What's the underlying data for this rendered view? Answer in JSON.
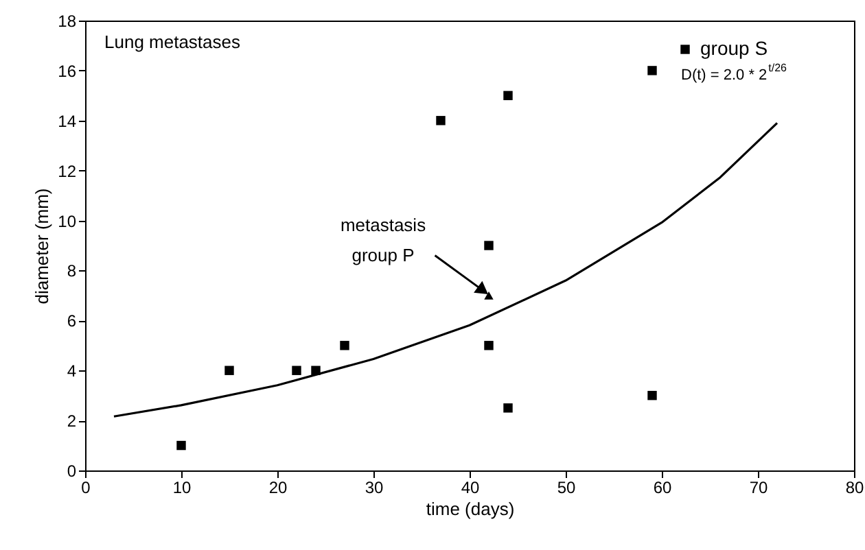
{
  "chart_data": {
    "type": "scatter",
    "title": "Lung metastases",
    "xlabel": "time (days)",
    "ylabel": "diameter (mm)",
    "xlim": [
      0,
      80
    ],
    "xticks": [
      0,
      10,
      20,
      30,
      40,
      50,
      60,
      70,
      80
    ],
    "ylim": [
      0,
      18
    ],
    "yticks": [
      0,
      2,
      4,
      6,
      8,
      10,
      12,
      14,
      16,
      18
    ],
    "grid": false,
    "legend": "top right",
    "series": [
      {
        "name": "group S",
        "color": "#000000",
        "marker": "square",
        "x": [
          10,
          15,
          22,
          24,
          27,
          37,
          42,
          42,
          44,
          44,
          59,
          59
        ],
        "values": [
          1,
          4,
          4,
          4,
          5,
          14,
          9,
          5,
          15,
          2.5,
          16,
          3
        ]
      },
      {
        "color": "#000000",
        "marker": "triangle",
        "x": [
          42
        ],
        "values": [
          7
        ]
      },
      {
        "type": "line",
        "color": "#000000",
        "marker": "none",
        "x": [
          3,
          10,
          20,
          30,
          40,
          50,
          60,
          66,
          72
        ],
        "values": [
          2.16,
          2.61,
          3.41,
          4.46,
          5.81,
          7.6,
          9.92,
          11.7,
          13.9
        ]
      }
    ],
    "annotations": [
      "D(t) = 2.0 * 2$^{t/26}$",
      {
        "text": "metastasis\ngroup P",
        "x": 42,
        "y": 7
      }
    ]
  }
}
